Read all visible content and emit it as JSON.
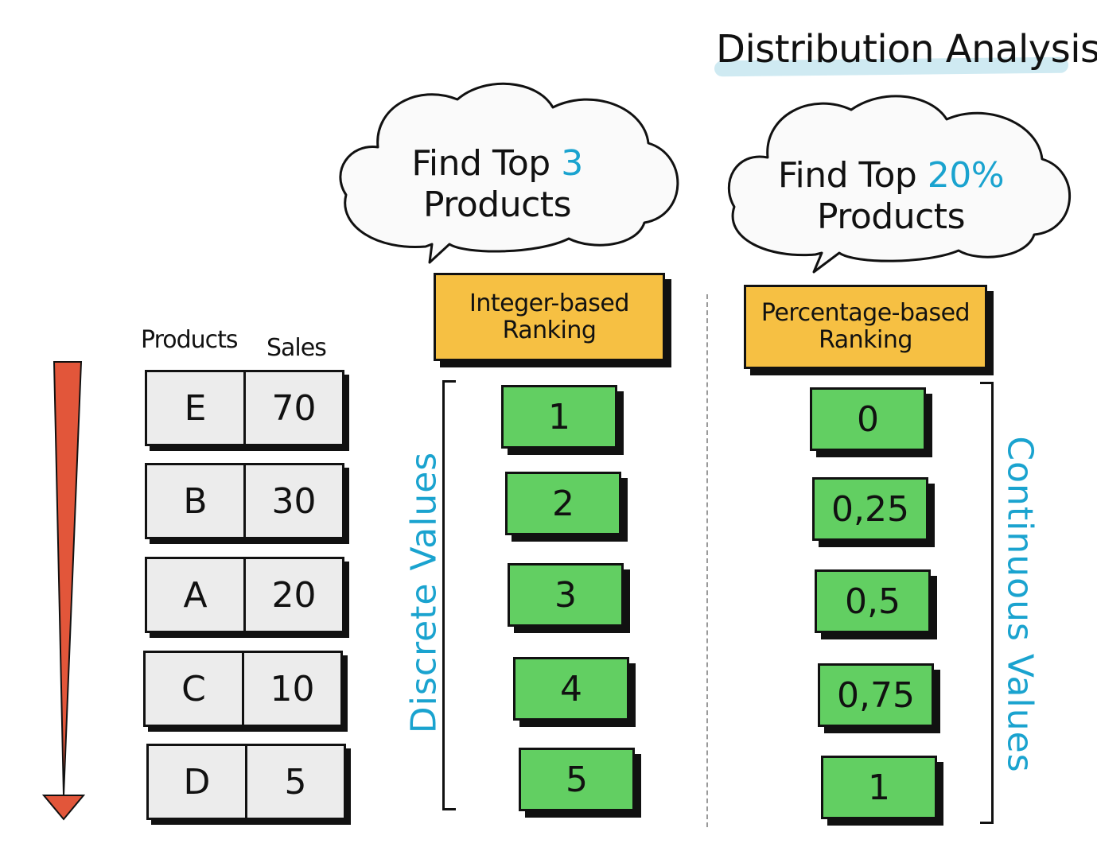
{
  "title": "Distribution Analysis",
  "clouds": [
    {
      "line1": "Find Top ",
      "highlight": "3",
      "line2": "Products"
    },
    {
      "line1": "Find Top ",
      "highlight": "20%",
      "line2": "Products"
    }
  ],
  "labels": {
    "integer": {
      "line1": "Integer-based",
      "line2": "Ranking"
    },
    "percentage": {
      "line1": "Percentage-based",
      "line2": "Ranking"
    }
  },
  "table": {
    "headers": [
      "Products",
      "Sales"
    ],
    "rows": [
      {
        "product": "E",
        "sales": "70"
      },
      {
        "product": "B",
        "sales": "30"
      },
      {
        "product": "A",
        "sales": "20"
      },
      {
        "product": "C",
        "sales": "10"
      },
      {
        "product": "D",
        "sales": "5"
      }
    ]
  },
  "integer_ranks": [
    "1",
    "2",
    "3",
    "4",
    "5"
  ],
  "percent_ranks": [
    "0",
    "0,25",
    "0,5",
    "0,75",
    "1"
  ],
  "side_labels": {
    "discrete": "Discrete Values",
    "continuous": "Continuous Values"
  },
  "colors": {
    "accent": "#1aa3cf",
    "yellow": "#f6c043",
    "green": "#62cf62",
    "arrow": "#e2563a"
  }
}
